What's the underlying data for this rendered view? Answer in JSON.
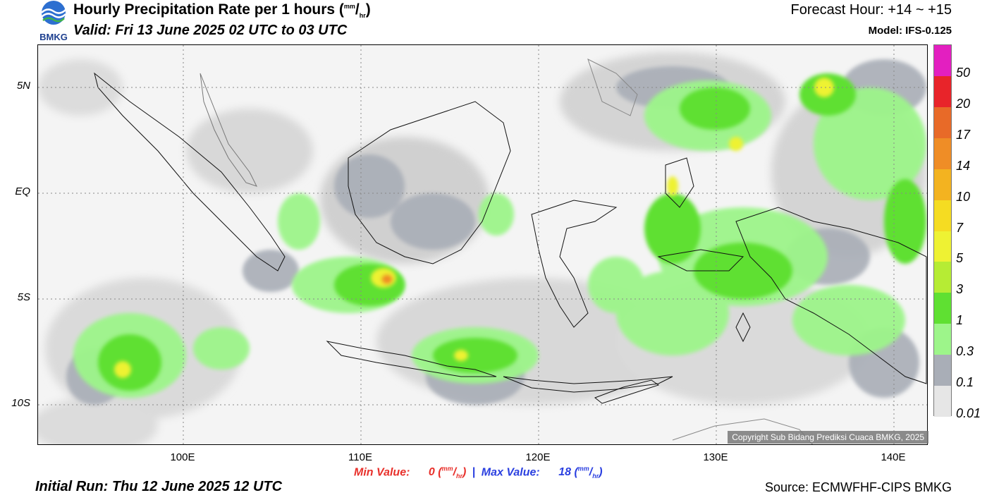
{
  "header": {
    "logo_text": "BMKG",
    "title_main": "Hourly Precipitation Rate per 1 hours (",
    "title_unit_num": "mm",
    "title_slash": "/",
    "title_unit_den": "hr",
    "title_close": ")",
    "valid": "Valid: Fri 13 June 2025 02 UTC to 03 UTC",
    "forecast_hour": "Forecast Hour: +14 ~ +15",
    "model": "Model: IFS-0.125"
  },
  "footer": {
    "initial_run": "Initial Run: Thu 12 June 2025 12 UTC",
    "source": "Source: ECMWFHF-CIPS BMKG",
    "min_label": "Min Value:",
    "min_value": "0",
    "max_label": "Max Value:",
    "max_value": "18",
    "unit_num": "mm",
    "unit_slash": "/",
    "unit_den": "hr",
    "separator": "|"
  },
  "map": {
    "copyright": "Copyright Sub Bidang Prediksi Cuaca BMKG, 2025",
    "lat_labels": [
      "5N",
      "EQ",
      "5S",
      "10S"
    ],
    "lon_labels": [
      "100E",
      "110E",
      "120E",
      "130E",
      "140E"
    ]
  },
  "legend": {
    "labels": [
      "50",
      "20",
      "17",
      "14",
      "10",
      "7",
      "5",
      "3",
      "1",
      "0.3",
      "0.1",
      "0.01"
    ],
    "colors": [
      "#e31fc0",
      "#e8242a",
      "#e86a28",
      "#ef8d26",
      "#f3b320",
      "#f5dc22",
      "#eef233",
      "#b6ec34",
      "#5fe032",
      "#9df58a",
      "#a9aeb7",
      "#e6e6e6"
    ]
  },
  "colors": {
    "land_outline": "#111111",
    "light_rain": "#e6e6e6",
    "moderate": "#a9aeb7",
    "green": "#5fe032",
    "light_green": "#9df58a",
    "yellow": "#eef233",
    "orange": "#ef8d26"
  }
}
